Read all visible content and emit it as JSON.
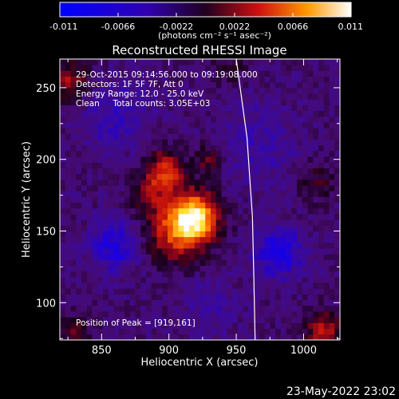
{
  "chart_data": {
    "type": "heatmap",
    "title": "Reconstructed RHESSI Image",
    "xlabel": "Heliocentric X (arcsec)",
    "ylabel": "Heliocentric Y (arcsec)",
    "xlim": [
      819,
      1027
    ],
    "ylim": [
      74,
      270
    ],
    "xticks": [
      850,
      900,
      950,
      1000
    ],
    "yticks": [
      100,
      150,
      200,
      250
    ],
    "colorbar": {
      "ticks": [
        "-0.011",
        "-0.0066",
        "-0.0022",
        "0.0022",
        "0.0066",
        "0.011"
      ],
      "range": [
        -0.011,
        0.011
      ],
      "unit_label": "(photons cm⁻² s⁻¹ asec⁻²)"
    },
    "annotations": {
      "time": "29-Oct-2015 09:14:56.000 to 09:19:08.000",
      "detectors": "Detectors: 1F 5F 7F, Att 0",
      "energy": "Energy Range: 12.0 - 25.0 keV",
      "clean": "Clean     Total counts: 3.05E+03",
      "peak": "Position of Peak = [919,161]"
    },
    "peak": {
      "x": 919,
      "y": 161
    },
    "components": [
      {
        "x": 919,
        "y": 160,
        "sigma": 12,
        "amp": 0.0105
      },
      {
        "x": 906,
        "y": 150,
        "sigma": 16,
        "amp": 0.0062
      },
      {
        "x": 897,
        "y": 192,
        "sigma": 10,
        "amp": 0.0068
      },
      {
        "x": 930,
        "y": 200,
        "sigma": 7,
        "amp": 0.0038
      },
      {
        "x": 885,
        "y": 175,
        "sigma": 9,
        "amp": 0.0032
      },
      {
        "x": 860,
        "y": 230,
        "sigma": 16,
        "amp": -0.0026
      },
      {
        "x": 860,
        "y": 140,
        "sigma": 12,
        "amp": -0.0045
      },
      {
        "x": 982,
        "y": 135,
        "sigma": 12,
        "amp": -0.0048
      },
      {
        "x": 965,
        "y": 210,
        "sigma": 20,
        "amp": -0.002
      },
      {
        "x": 930,
        "y": 100,
        "sigma": 14,
        "amp": -0.0016
      },
      {
        "x": 827,
        "y": 255,
        "sigma": 10,
        "amp": 0.0046
      },
      {
        "x": 1015,
        "y": 80,
        "sigma": 10,
        "amp": 0.0052
      },
      {
        "x": 830,
        "y": 80,
        "sigma": 8,
        "amp": 0.0032
      },
      {
        "x": 1010,
        "y": 185,
        "sigma": 10,
        "amp": 0.0024
      },
      {
        "x": 945,
        "y": 265,
        "sigma": 10,
        "amp": 0.0018
      }
    ],
    "limb_curve": [
      [
        950,
        270
      ],
      [
        958,
        215
      ],
      [
        962,
        160
      ],
      [
        963,
        120
      ],
      [
        964,
        74
      ]
    ]
  },
  "footer": {
    "date": "23-May-2022 23:02"
  }
}
